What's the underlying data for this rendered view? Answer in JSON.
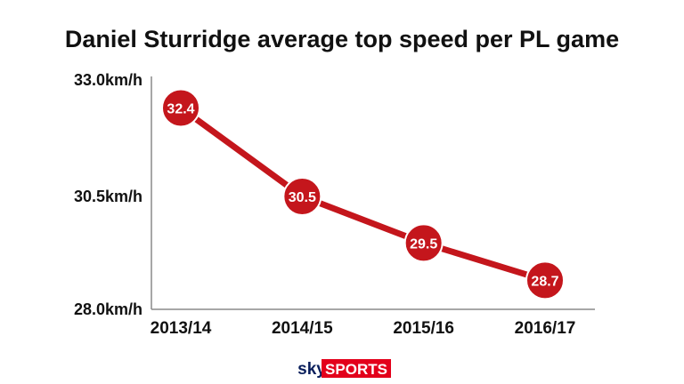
{
  "chart_data": {
    "type": "line",
    "title": "Daniel Sturridge average top speed per PL game",
    "xlabel": "",
    "ylabel": "",
    "categories": [
      "2013/14",
      "2014/15",
      "2015/16",
      "2016/17"
    ],
    "values": [
      32.4,
      30.5,
      29.5,
      28.7
    ],
    "point_labels": [
      "32.4",
      "30.5",
      "29.5",
      "28.7"
    ],
    "ylim": [
      28.0,
      33.0
    ],
    "yticks": [
      {
        "value": 33.0,
        "label": "33.0km/h"
      },
      {
        "value": 30.5,
        "label": "30.5km/h"
      },
      {
        "value": 28.0,
        "label": "28.0km/h"
      }
    ],
    "grid": false,
    "legend": "none",
    "colors": {
      "line": "#c4161c",
      "marker": "#c4161c",
      "marker_stroke": "#ffffff",
      "axis": "#8a8a8a",
      "text": "#111111"
    }
  },
  "branding": {
    "logo_sky": "sky",
    "logo_sports": "SPORTS",
    "logo_colors": {
      "sky_bg": "#ffffff",
      "sky_text": "#0a1f5c",
      "sports_bg": "#e3001b",
      "sports_text": "#ffffff"
    }
  }
}
